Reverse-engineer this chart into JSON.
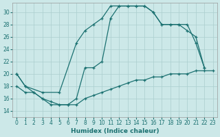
{
  "xlabel": "Humidex (Indice chaleur)",
  "bg_color": "#cce8e8",
  "line_color": "#1a7070",
  "grid_color": "#aacece",
  "xlim": [
    -0.5,
    23.5
  ],
  "ylim": [
    13.0,
    31.5
  ],
  "xticks": [
    0,
    1,
    2,
    3,
    4,
    5,
    6,
    7,
    8,
    9,
    10,
    11,
    12,
    13,
    14,
    15,
    16,
    17,
    18,
    19,
    20,
    21,
    22,
    23
  ],
  "yticks": [
    14,
    16,
    18,
    20,
    22,
    24,
    26,
    28,
    30
  ],
  "line1_x": [
    0,
    1,
    3,
    5,
    7,
    8,
    9,
    10,
    11,
    12,
    13,
    14,
    15,
    16,
    17,
    18,
    19,
    20,
    21,
    22
  ],
  "line1_y": [
    20,
    18,
    17,
    17,
    25,
    27,
    28,
    29,
    31,
    31,
    31,
    31,
    31,
    30,
    28,
    28,
    28,
    28,
    25,
    21
  ],
  "line2_x": [
    0,
    1,
    2,
    3,
    4,
    5,
    6,
    7,
    8,
    9,
    10,
    11,
    12,
    13,
    14,
    15,
    16,
    17,
    18,
    19,
    20,
    21,
    22
  ],
  "line2_y": [
    20,
    18,
    17,
    16,
    15,
    15,
    15,
    16,
    21,
    21,
    22,
    29,
    31,
    31,
    31,
    31,
    30,
    28,
    28,
    28,
    27,
    26,
    21
  ],
  "line3_x": [
    0,
    1,
    2,
    3,
    4,
    5,
    6,
    7,
    8,
    9,
    10,
    11,
    12,
    13,
    14,
    15,
    16,
    17,
    18,
    19,
    20,
    21,
    22,
    23
  ],
  "line3_y": [
    18,
    17,
    17,
    16,
    15.5,
    15,
    15,
    15,
    16,
    16.5,
    17,
    17.5,
    18,
    18.5,
    19,
    19,
    19.5,
    19.5,
    20,
    20,
    20,
    20.5,
    20.5,
    20.5
  ]
}
